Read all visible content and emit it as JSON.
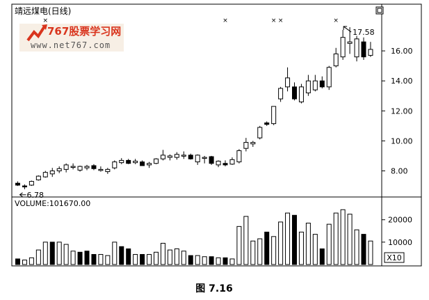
{
  "chart_data": [
    {
      "type": "candlestick",
      "title": "靖远煤电(日线)",
      "watermark": {
        "brand": "767股票学习网",
        "url": "www.net767.com"
      },
      "x_unit": "trading day",
      "ylim": [
        6.4,
        18.0
      ],
      "y_ticks": [
        8.0,
        10.0,
        12.0,
        14.0,
        16.0
      ],
      "y_tick_labels": [
        "8.00",
        "10.00",
        "12.00",
        "14.00",
        "16.00"
      ],
      "grid": false,
      "annotations": [
        {
          "text": "6.78",
          "day": 1,
          "price": 6.78,
          "kind": "low"
        },
        {
          "text": "17.58",
          "day": 48,
          "price": 17.58,
          "kind": "high"
        }
      ],
      "x_marker_days": [
        5,
        31,
        38,
        39,
        47
      ],
      "candles": [
        {
          "o": 7.18,
          "h": 7.3,
          "l": 7.0,
          "c": 7.05,
          "up": false
        },
        {
          "o": 7.0,
          "h": 7.1,
          "l": 6.78,
          "c": 6.95,
          "up": false
        },
        {
          "o": 7.05,
          "h": 7.35,
          "l": 7.0,
          "c": 7.3,
          "up": true
        },
        {
          "o": 7.4,
          "h": 7.7,
          "l": 7.35,
          "c": 7.65,
          "up": true
        },
        {
          "o": 7.6,
          "h": 8.0,
          "l": 7.55,
          "c": 7.9,
          "up": true
        },
        {
          "o": 7.8,
          "h": 8.2,
          "l": 7.6,
          "c": 8.0,
          "up": true
        },
        {
          "o": 8.0,
          "h": 8.3,
          "l": 7.85,
          "c": 8.15,
          "up": true
        },
        {
          "o": 8.1,
          "h": 8.5,
          "l": 7.9,
          "c": 8.4,
          "up": true
        },
        {
          "o": 8.25,
          "h": 8.5,
          "l": 8.1,
          "c": 8.3,
          "up": true
        },
        {
          "o": 8.05,
          "h": 8.35,
          "l": 7.95,
          "c": 8.3,
          "up": true
        },
        {
          "o": 8.2,
          "h": 8.4,
          "l": 8.05,
          "c": 8.3,
          "up": true
        },
        {
          "o": 8.35,
          "h": 8.45,
          "l": 8.05,
          "c": 8.15,
          "up": false
        },
        {
          "o": 8.1,
          "h": 8.3,
          "l": 7.95,
          "c": 8.1,
          "up": true
        },
        {
          "o": 7.95,
          "h": 8.2,
          "l": 7.8,
          "c": 8.1,
          "up": true
        },
        {
          "o": 8.2,
          "h": 8.7,
          "l": 8.1,
          "c": 8.6,
          "up": true
        },
        {
          "o": 8.55,
          "h": 8.85,
          "l": 8.45,
          "c": 8.7,
          "up": true
        },
        {
          "o": 8.7,
          "h": 8.8,
          "l": 8.45,
          "c": 8.5,
          "up": false
        },
        {
          "o": 8.55,
          "h": 8.8,
          "l": 8.45,
          "c": 8.65,
          "up": true
        },
        {
          "o": 8.6,
          "h": 8.7,
          "l": 8.4,
          "c": 8.35,
          "up": false
        },
        {
          "o": 8.4,
          "h": 8.6,
          "l": 8.2,
          "c": 8.5,
          "up": true
        },
        {
          "o": 8.5,
          "h": 8.85,
          "l": 8.45,
          "c": 8.8,
          "up": true
        },
        {
          "o": 8.8,
          "h": 9.4,
          "l": 8.7,
          "c": 9.05,
          "up": true
        },
        {
          "o": 8.9,
          "h": 9.1,
          "l": 8.7,
          "c": 9.0,
          "up": true
        },
        {
          "o": 8.9,
          "h": 9.25,
          "l": 8.75,
          "c": 9.1,
          "up": true
        },
        {
          "o": 9.05,
          "h": 9.3,
          "l": 8.8,
          "c": 9.05,
          "up": true
        },
        {
          "o": 9.05,
          "h": 9.15,
          "l": 8.75,
          "c": 8.8,
          "up": false
        },
        {
          "o": 8.6,
          "h": 9.1,
          "l": 8.4,
          "c": 9.05,
          "up": true
        },
        {
          "o": 8.85,
          "h": 9.0,
          "l": 8.5,
          "c": 8.9,
          "up": true
        },
        {
          "o": 8.95,
          "h": 9.0,
          "l": 8.4,
          "c": 8.5,
          "up": false
        },
        {
          "o": 8.4,
          "h": 8.7,
          "l": 8.25,
          "c": 8.65,
          "up": true
        },
        {
          "o": 8.5,
          "h": 8.7,
          "l": 8.3,
          "c": 8.4,
          "up": false
        },
        {
          "o": 8.45,
          "h": 8.9,
          "l": 8.4,
          "c": 8.75,
          "up": true
        },
        {
          "o": 8.6,
          "h": 9.45,
          "l": 8.5,
          "c": 9.35,
          "up": true
        },
        {
          "o": 9.5,
          "h": 10.2,
          "l": 9.3,
          "c": 9.9,
          "up": true
        },
        {
          "o": 9.8,
          "h": 10.0,
          "l": 9.6,
          "c": 9.9,
          "up": true
        },
        {
          "o": 10.2,
          "h": 11.0,
          "l": 10.1,
          "c": 10.9,
          "up": true
        },
        {
          "o": 11.2,
          "h": 11.3,
          "l": 11.0,
          "c": 11.1,
          "up": false
        },
        {
          "o": 11.15,
          "h": 12.3,
          "l": 11.05,
          "c": 12.3,
          "up": true
        },
        {
          "o": 12.8,
          "h": 13.6,
          "l": 12.6,
          "c": 13.5,
          "up": true
        },
        {
          "o": 13.6,
          "h": 14.9,
          "l": 13.3,
          "c": 14.2,
          "up": true
        },
        {
          "o": 13.6,
          "h": 13.9,
          "l": 12.7,
          "c": 12.8,
          "up": false
        },
        {
          "o": 12.6,
          "h": 13.8,
          "l": 12.5,
          "c": 13.6,
          "up": true
        },
        {
          "o": 13.2,
          "h": 14.4,
          "l": 13.0,
          "c": 14.0,
          "up": true
        },
        {
          "o": 13.4,
          "h": 14.4,
          "l": 13.3,
          "c": 14.0,
          "up": true
        },
        {
          "o": 14.0,
          "h": 14.3,
          "l": 13.5,
          "c": 13.6,
          "up": false
        },
        {
          "o": 13.6,
          "h": 15.0,
          "l": 13.4,
          "c": 14.9,
          "up": true
        },
        {
          "o": 15.0,
          "h": 16.2,
          "l": 14.9,
          "c": 15.8,
          "up": true
        },
        {
          "o": 15.6,
          "h": 17.4,
          "l": 15.4,
          "c": 16.9,
          "up": true
        },
        {
          "o": 16.5,
          "h": 17.58,
          "l": 15.8,
          "c": 16.6,
          "up": true
        },
        {
          "o": 15.6,
          "h": 17.0,
          "l": 15.3,
          "c": 16.8,
          "up": true
        },
        {
          "o": 16.6,
          "h": 16.9,
          "l": 15.4,
          "c": 15.6,
          "up": false
        },
        {
          "o": 15.7,
          "h": 16.6,
          "l": 15.6,
          "c": 16.1,
          "up": true
        }
      ]
    },
    {
      "type": "bar",
      "title": "VOLUME:101670.00",
      "ylim": [
        0,
        28000
      ],
      "y_ticks": [
        10000,
        20000
      ],
      "y_tick_labels": [
        "10000",
        "20000"
      ],
      "scale_note": "X10",
      "volumes": [
        {
          "v": 2500,
          "up": false
        },
        {
          "v": 2000,
          "up": true
        },
        {
          "v": 3000,
          "up": true
        },
        {
          "v": 6500,
          "up": true
        },
        {
          "v": 10000,
          "up": true
        },
        {
          "v": 10000,
          "up": false
        },
        {
          "v": 10000,
          "up": true
        },
        {
          "v": 9000,
          "up": true
        },
        {
          "v": 6000,
          "up": true
        },
        {
          "v": 5500,
          "up": false
        },
        {
          "v": 6000,
          "up": false
        },
        {
          "v": 4500,
          "up": false
        },
        {
          "v": 4500,
          "up": true
        },
        {
          "v": 4000,
          "up": true
        },
        {
          "v": 10000,
          "up": true
        },
        {
          "v": 8000,
          "up": false
        },
        {
          "v": 7000,
          "up": false
        },
        {
          "v": 4500,
          "up": true
        },
        {
          "v": 4500,
          "up": false
        },
        {
          "v": 4500,
          "up": true
        },
        {
          "v": 5500,
          "up": true
        },
        {
          "v": 9500,
          "up": true
        },
        {
          "v": 6500,
          "up": true
        },
        {
          "v": 7000,
          "up": true
        },
        {
          "v": 6000,
          "up": true
        },
        {
          "v": 4000,
          "up": false
        },
        {
          "v": 4000,
          "up": true
        },
        {
          "v": 3500,
          "up": true
        },
        {
          "v": 3500,
          "up": false
        },
        {
          "v": 3000,
          "up": true
        },
        {
          "v": 3000,
          "up": false
        },
        {
          "v": 2500,
          "up": true
        },
        {
          "v": 17000,
          "up": true
        },
        {
          "v": 21500,
          "up": true
        },
        {
          "v": 10500,
          "up": true
        },
        {
          "v": 11500,
          "up": true
        },
        {
          "v": 14500,
          "up": false
        },
        {
          "v": 12500,
          "up": true
        },
        {
          "v": 19000,
          "up": true
        },
        {
          "v": 23000,
          "up": true
        },
        {
          "v": 22000,
          "up": false
        },
        {
          "v": 14500,
          "up": true
        },
        {
          "v": 18500,
          "up": true
        },
        {
          "v": 13500,
          "up": true
        },
        {
          "v": 7000,
          "up": false
        },
        {
          "v": 18000,
          "up": true
        },
        {
          "v": 23000,
          "up": true
        },
        {
          "v": 24500,
          "up": true
        },
        {
          "v": 22500,
          "up": true
        },
        {
          "v": 15500,
          "up": true
        },
        {
          "v": 13500,
          "up": false
        },
        {
          "v": 10500,
          "up": true
        }
      ]
    }
  ],
  "caption": "图 7.16",
  "window": {
    "restore_icon": "restore-icon"
  }
}
